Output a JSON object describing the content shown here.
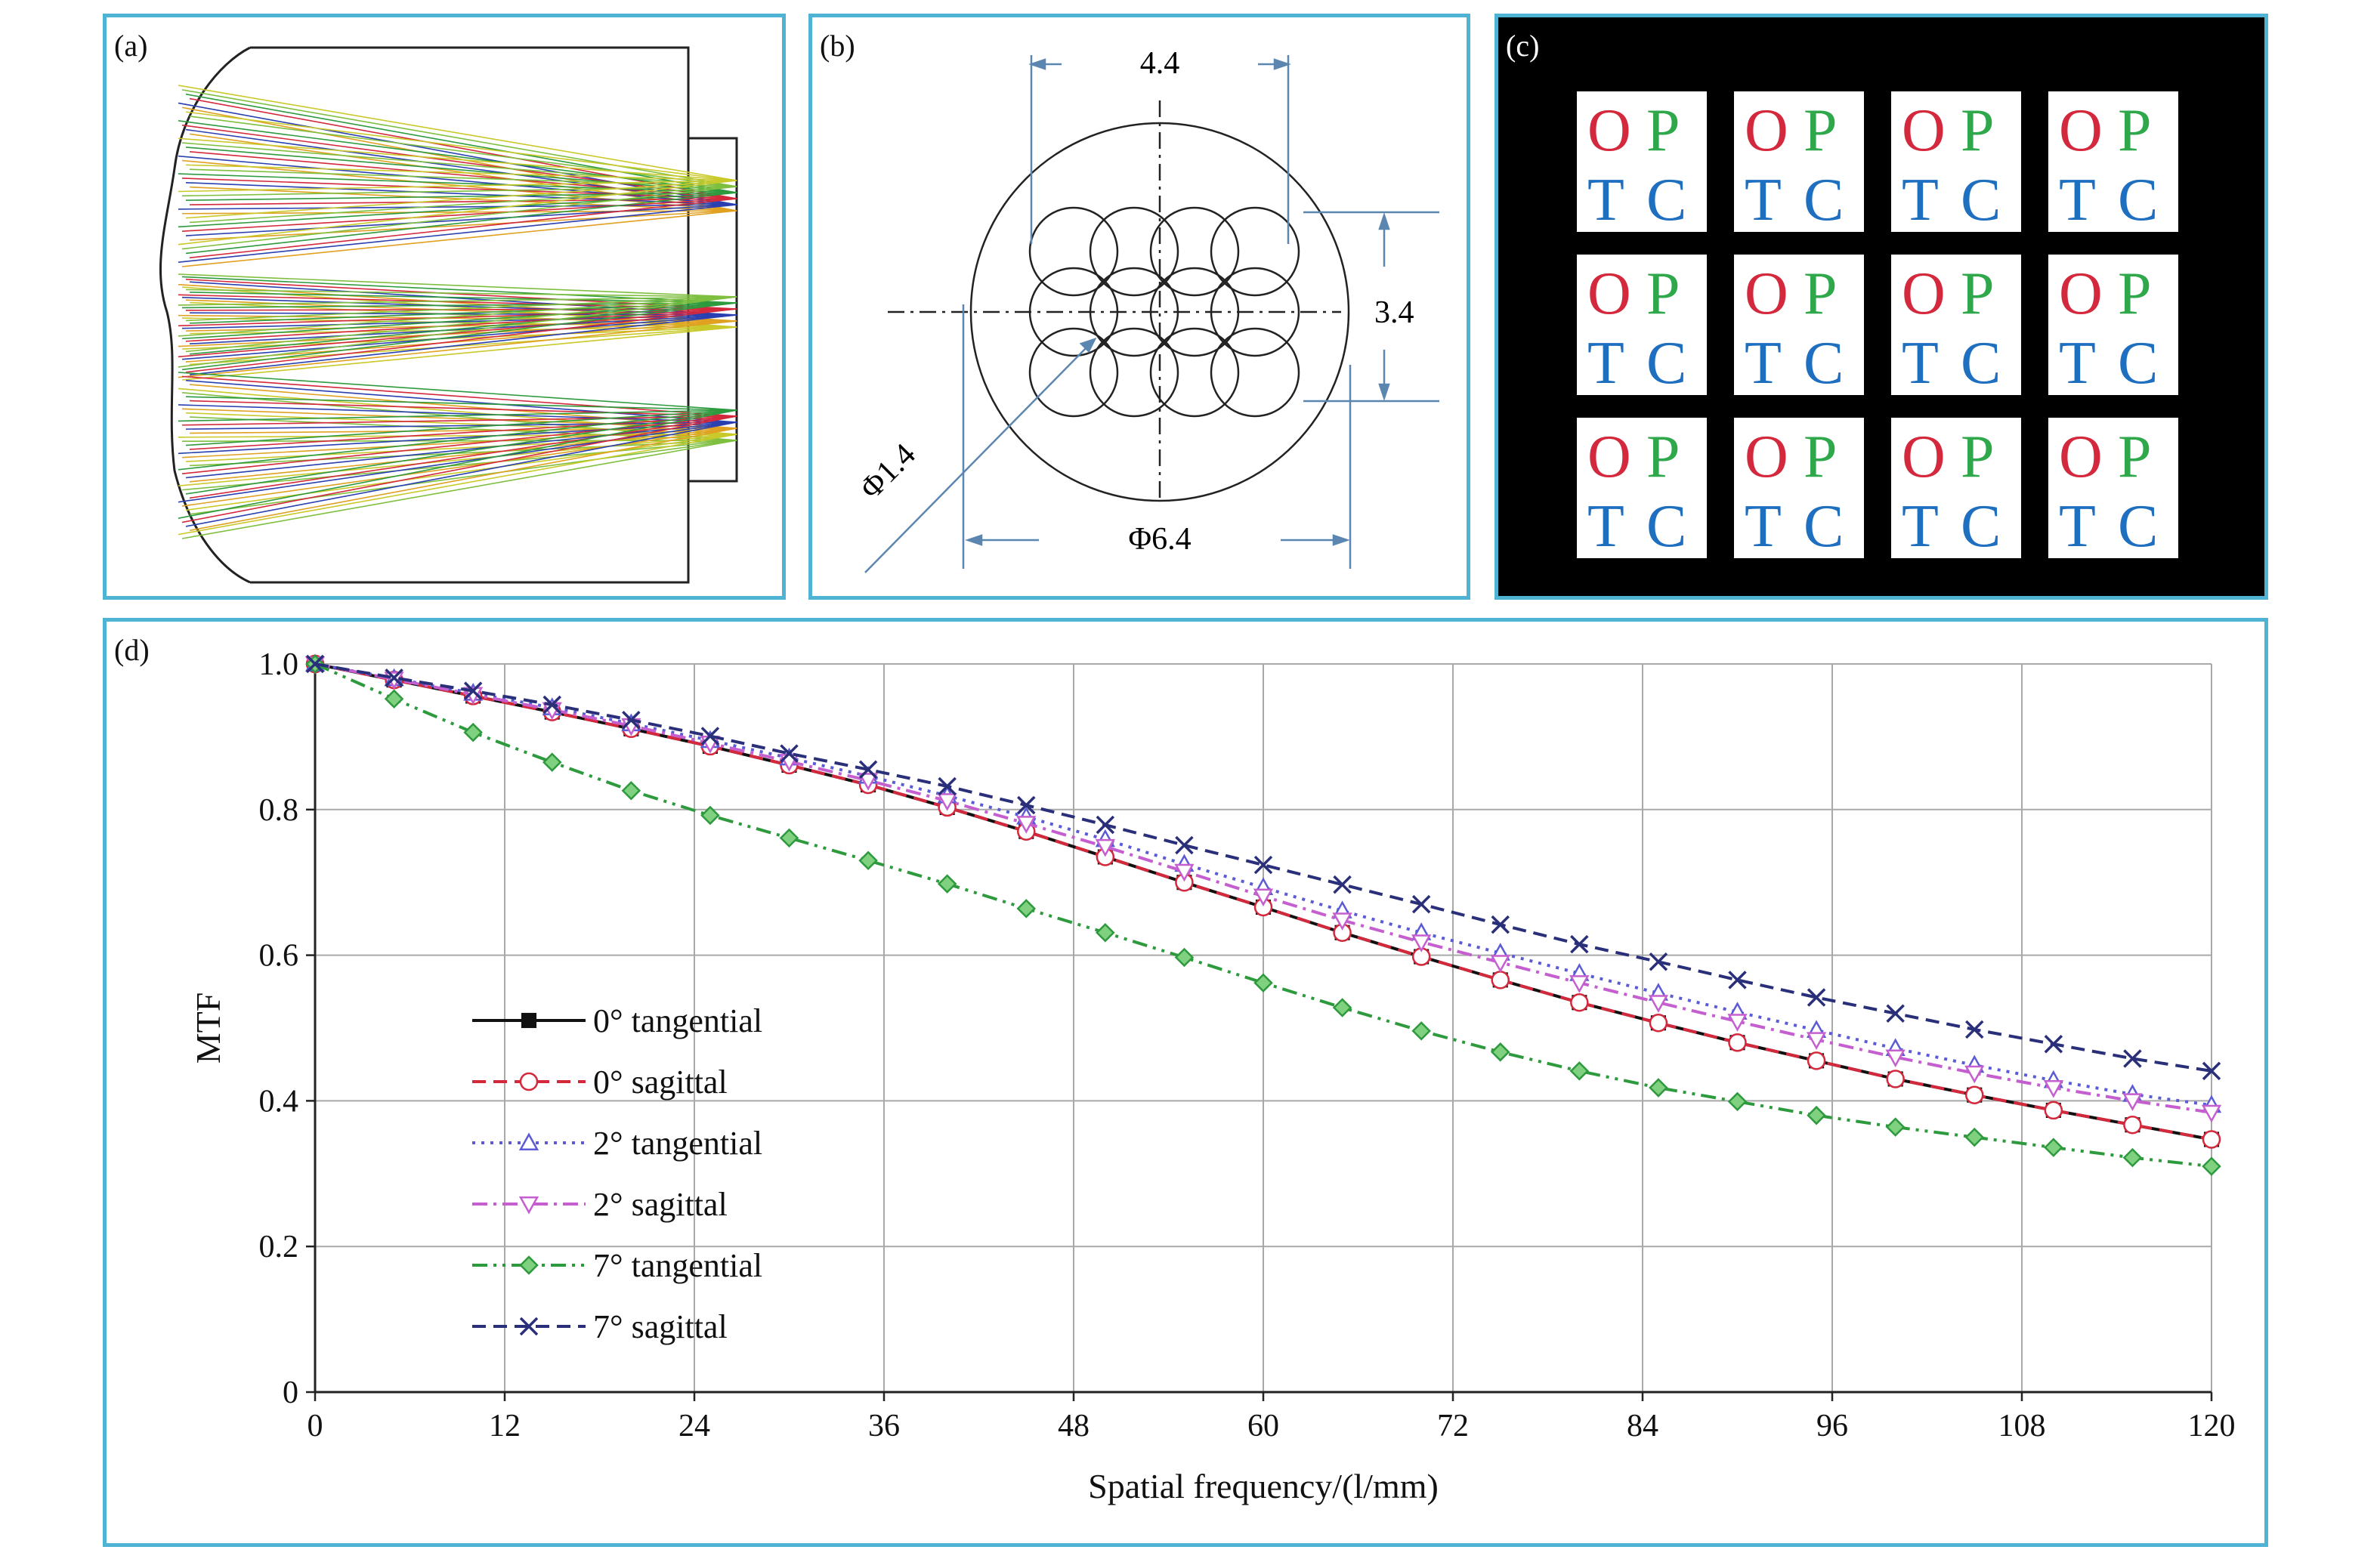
{
  "panels": {
    "a": {
      "label": "(a)"
    },
    "b": {
      "label": "(b)",
      "dim_top": "4.4",
      "dim_right": "3.4",
      "dim_small": "Φ1.4",
      "dim_bottom": "Φ6.4"
    },
    "c": {
      "label": "(c)",
      "tiles": [
        [
          "O",
          "P",
          "T",
          "C"
        ],
        [
          "O",
          "P",
          "T",
          "C"
        ],
        [
          "O",
          "P",
          "T",
          "C"
        ],
        [
          "O",
          "P",
          "T",
          "C"
        ],
        [
          "O",
          "P",
          "T",
          "C"
        ],
        [
          "O",
          "P",
          "T",
          "C"
        ],
        [
          "O",
          "P",
          "T",
          "C"
        ],
        [
          "O",
          "P",
          "T",
          "C"
        ],
        [
          "O",
          "P",
          "T",
          "C"
        ],
        [
          "O",
          "P",
          "T",
          "C"
        ],
        [
          "O",
          "P",
          "T",
          "C"
        ],
        [
          "O",
          "P",
          "T",
          "C"
        ]
      ],
      "colors": {
        "O": "#d4283c",
        "P": "#2ea84a",
        "T": "#1e6fc0",
        "C": "#1e6fc0"
      }
    },
    "d": {
      "label": "(d)"
    }
  },
  "chart_data": {
    "type": "line",
    "xlabel": "Spatial frequency/(l/mm)",
    "ylabel": "MTF",
    "xlim": [
      0,
      120
    ],
    "ylim": [
      0,
      1.0
    ],
    "xticks": [
      "0",
      "12",
      "24",
      "36",
      "48",
      "60",
      "72",
      "84",
      "96",
      "108",
      "120"
    ],
    "yticks": [
      "0",
      "0.2",
      "0.4",
      "0.6",
      "0.8",
      "1.0"
    ],
    "grid": true,
    "legend_position": "left-middle",
    "x": [
      0,
      5,
      10,
      15,
      20,
      25,
      30,
      35,
      40,
      45,
      50,
      55,
      60,
      65,
      70,
      75,
      80,
      85,
      90,
      95,
      100,
      105,
      110,
      115,
      120
    ],
    "series": [
      {
        "name": "0° tangential",
        "color": "#111111",
        "dash": "solid",
        "marker": "square",
        "values": [
          1.0,
          0.978,
          0.956,
          0.934,
          0.911,
          0.887,
          0.861,
          0.834,
          0.803,
          0.77,
          0.735,
          0.7,
          0.666,
          0.631,
          0.598,
          0.566,
          0.535,
          0.507,
          0.48,
          0.455,
          0.43,
          0.408,
          0.387,
          0.367,
          0.347
        ]
      },
      {
        "name": "0° sagittal",
        "color": "#d4283c",
        "dash": "dashed",
        "marker": "circle",
        "values": [
          1.0,
          0.978,
          0.956,
          0.934,
          0.911,
          0.887,
          0.861,
          0.834,
          0.803,
          0.77,
          0.735,
          0.7,
          0.666,
          0.631,
          0.598,
          0.566,
          0.535,
          0.507,
          0.48,
          0.455,
          0.43,
          0.408,
          0.387,
          0.367,
          0.347
        ]
      },
      {
        "name": "2° tangential",
        "color": "#5b5bd6",
        "dash": "dotted",
        "marker": "triangle",
        "values": [
          1.0,
          0.98,
          0.96,
          0.94,
          0.918,
          0.895,
          0.871,
          0.846,
          0.819,
          0.79,
          0.759,
          0.725,
          0.693,
          0.661,
          0.631,
          0.603,
          0.575,
          0.548,
          0.522,
          0.497,
          0.472,
          0.449,
          0.428,
          0.409,
          0.394
        ]
      },
      {
        "name": "2° sagittal",
        "color": "#c55fd0",
        "dash": "dashdot",
        "marker": "triangle-down",
        "values": [
          1.0,
          0.979,
          0.958,
          0.937,
          0.915,
          0.891,
          0.866,
          0.84,
          0.812,
          0.781,
          0.749,
          0.715,
          0.681,
          0.648,
          0.618,
          0.59,
          0.562,
          0.535,
          0.509,
          0.484,
          0.46,
          0.438,
          0.418,
          0.4,
          0.384
        ]
      },
      {
        "name": "7° tangential",
        "color": "#2e9a3e",
        "dash": "dashdotdot",
        "marker": "diamond",
        "values": [
          1.0,
          0.952,
          0.906,
          0.865,
          0.826,
          0.792,
          0.761,
          0.73,
          0.698,
          0.664,
          0.631,
          0.597,
          0.562,
          0.528,
          0.496,
          0.467,
          0.441,
          0.418,
          0.399,
          0.38,
          0.364,
          0.35,
          0.336,
          0.322,
          0.31
        ]
      },
      {
        "name": "7° sagittal",
        "color": "#2a2f7a",
        "dash": "dashed",
        "marker": "x",
        "values": [
          1.0,
          0.981,
          0.963,
          0.944,
          0.923,
          0.901,
          0.877,
          0.855,
          0.832,
          0.806,
          0.779,
          0.751,
          0.724,
          0.697,
          0.67,
          0.642,
          0.615,
          0.591,
          0.566,
          0.542,
          0.52,
          0.498,
          0.478,
          0.458,
          0.441
        ]
      }
    ]
  }
}
